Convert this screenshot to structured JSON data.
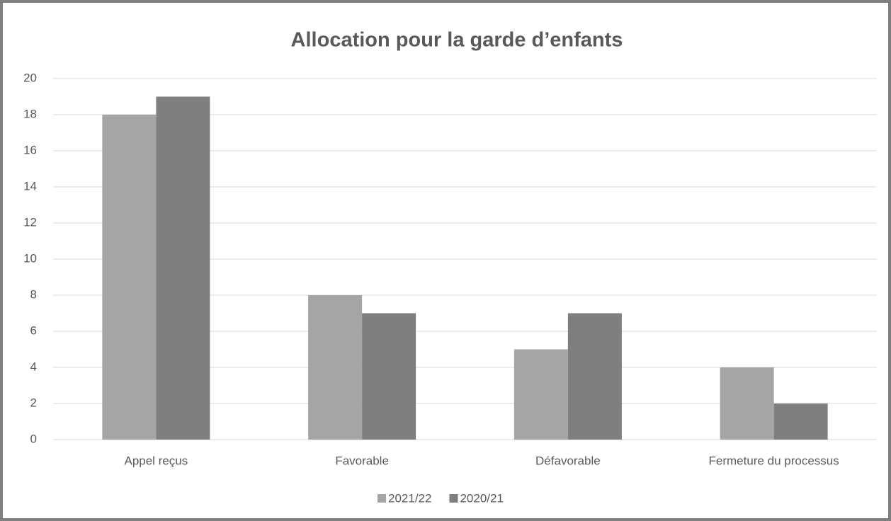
{
  "chart_data": {
    "type": "bar",
    "title": "Allocation pour la garde d’enfants",
    "categories": [
      "Appel reçus",
      "Favorable",
      "Défavorable",
      "Fermeture du processus"
    ],
    "series": [
      {
        "name": "2021/22",
        "color": "#a5a5a5",
        "values": [
          18,
          8,
          5,
          4
        ]
      },
      {
        "name": "2020/21",
        "color": "#7f7f7f",
        "values": [
          19,
          7,
          7,
          2
        ]
      }
    ],
    "ylim": [
      0,
      20
    ],
    "yticks": [
      0,
      2,
      4,
      6,
      8,
      10,
      12,
      14,
      16,
      18,
      20
    ],
    "grid": true,
    "legend": "bottom"
  }
}
